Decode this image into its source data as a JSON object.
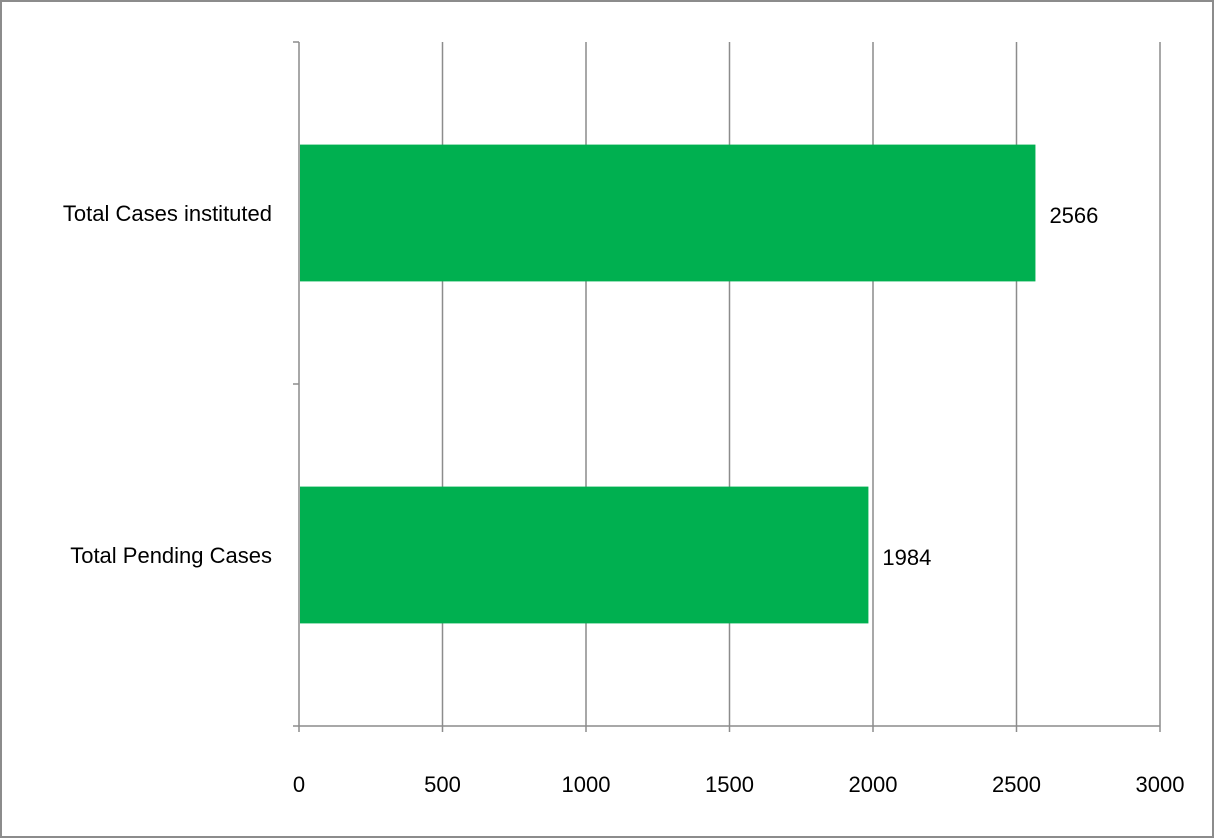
{
  "chart_data": {
    "type": "bar",
    "orientation": "horizontal",
    "categories": [
      "Total Cases instituted",
      "Total Pending Cases"
    ],
    "values": [
      2566,
      1984
    ],
    "data_labels": [
      "2566",
      "1984"
    ],
    "xlim": [
      0,
      3000
    ],
    "xticks": [
      0,
      500,
      1000,
      1500,
      2000,
      2500,
      3000
    ],
    "xtick_labels": [
      "0",
      "500",
      "1000",
      "1500",
      "2000",
      "2500",
      "3000"
    ],
    "title": "",
    "xlabel": "",
    "ylabel": "",
    "grid": "vertical",
    "legend": "none",
    "bar_color": "#00b050",
    "grid_color": "#8c8c8c",
    "axis_color": "#8c8c8c"
  }
}
